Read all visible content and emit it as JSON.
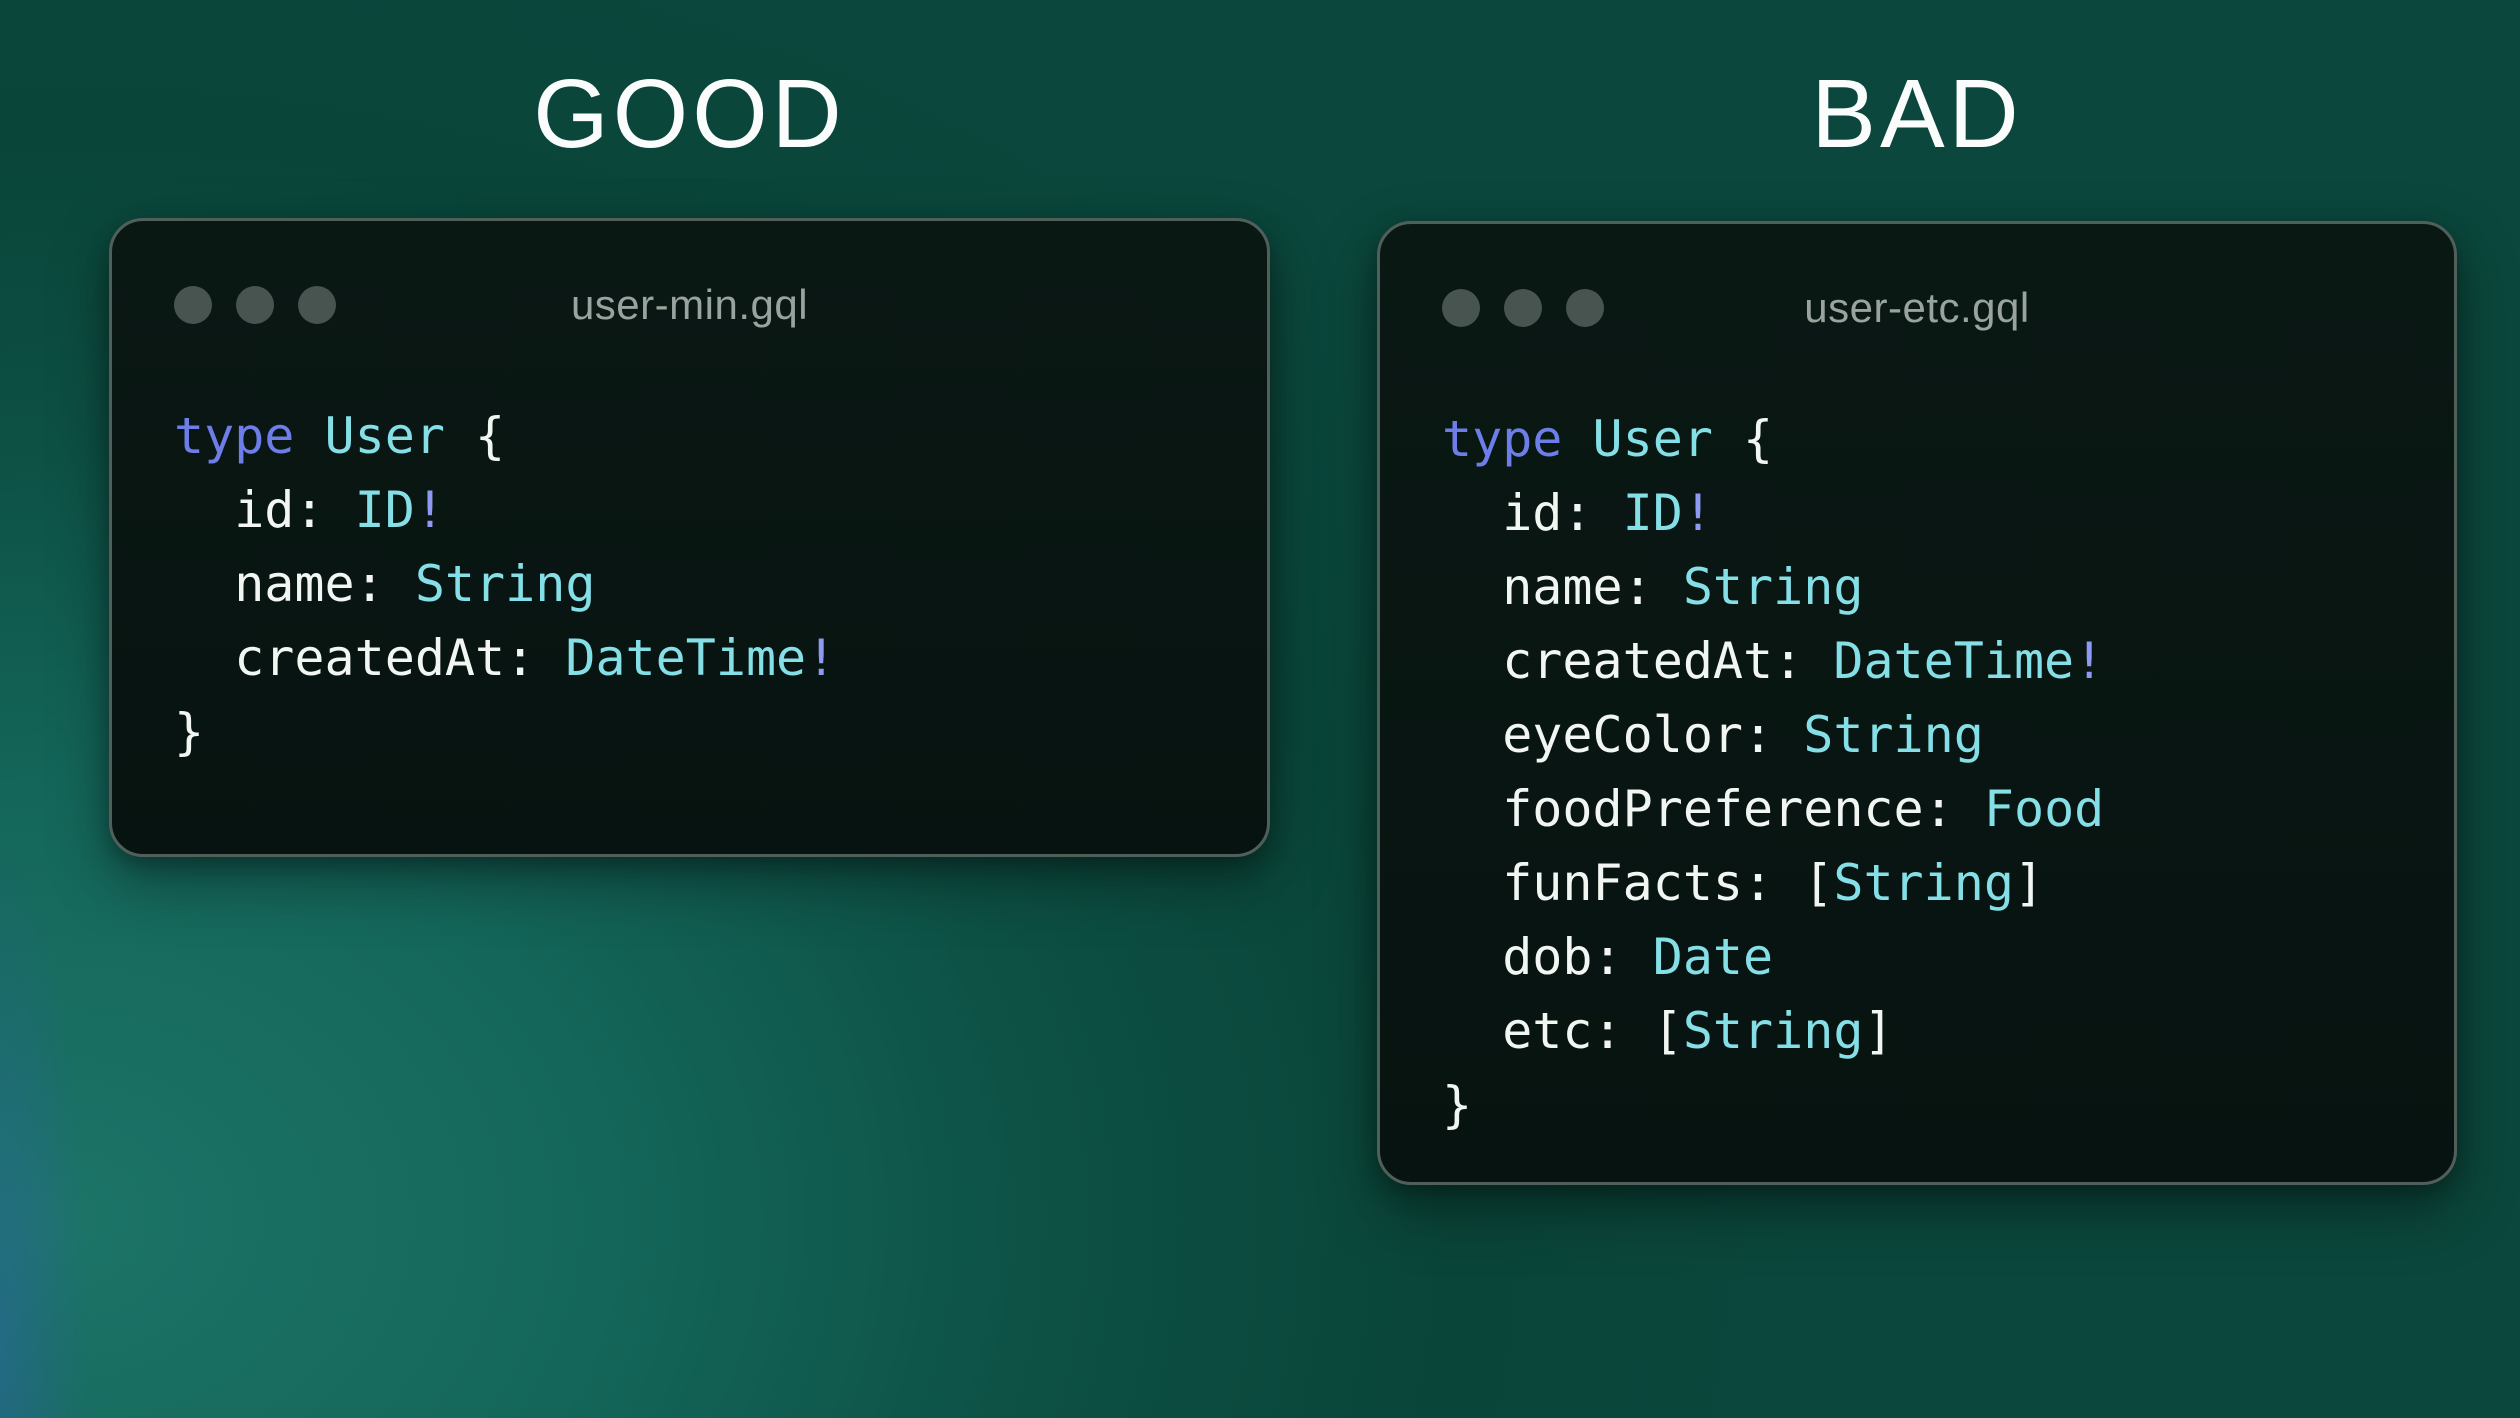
{
  "colors": {
    "keyword": "#6e7ee9",
    "type": "#85dfe7",
    "bang": "#8e9af2",
    "plain": "#f2f6f3",
    "window-bg-top": "#0a1814",
    "window-bg-bottom": "#071310",
    "window-border": "#515f5a",
    "window-title": "#9aa49f",
    "window-dot": "#47544f",
    "bg-light": "#1c7467",
    "bg-mid": "#14665a",
    "bg-base": "#0a4539",
    "heading": "#fbfdfc"
  },
  "headings": {
    "good": "GOOD",
    "bad": "BAD"
  },
  "windows": [
    {
      "title": "user-min.gql",
      "code": [
        [
          {
            "t": "type",
            "c": "kw"
          },
          {
            "t": " ",
            "c": "pl"
          },
          {
            "t": "User",
            "c": "ty"
          },
          {
            "t": " {",
            "c": "pl"
          }
        ],
        [
          {
            "t": "  id: ",
            "c": "pl"
          },
          {
            "t": "ID",
            "c": "ty"
          },
          {
            "t": "!",
            "c": "bang"
          }
        ],
        [
          {
            "t": "  name: ",
            "c": "pl"
          },
          {
            "t": "String",
            "c": "ty"
          }
        ],
        [
          {
            "t": "  createdAt: ",
            "c": "pl"
          },
          {
            "t": "DateTime",
            "c": "ty"
          },
          {
            "t": "!",
            "c": "bang"
          }
        ],
        [
          {
            "t": "}",
            "c": "pl"
          }
        ]
      ]
    },
    {
      "title": "user-etc.gql",
      "code": [
        [
          {
            "t": "type",
            "c": "kw"
          },
          {
            "t": " ",
            "c": "pl"
          },
          {
            "t": "User",
            "c": "ty"
          },
          {
            "t": " {",
            "c": "pl"
          }
        ],
        [
          {
            "t": "  id: ",
            "c": "pl"
          },
          {
            "t": "ID",
            "c": "ty"
          },
          {
            "t": "!",
            "c": "bang"
          }
        ],
        [
          {
            "t": "  name: ",
            "c": "pl"
          },
          {
            "t": "String",
            "c": "ty"
          }
        ],
        [
          {
            "t": "  createdAt: ",
            "c": "pl"
          },
          {
            "t": "DateTime",
            "c": "ty"
          },
          {
            "t": "!",
            "c": "bang"
          }
        ],
        [
          {
            "t": "  eyeColor: ",
            "c": "pl"
          },
          {
            "t": "String",
            "c": "ty"
          }
        ],
        [
          {
            "t": "  foodPreference: ",
            "c": "pl"
          },
          {
            "t": "Food",
            "c": "ty"
          }
        ],
        [
          {
            "t": "  funFacts: [",
            "c": "pl"
          },
          {
            "t": "String",
            "c": "ty"
          },
          {
            "t": "]",
            "c": "pl"
          }
        ],
        [
          {
            "t": "  dob: ",
            "c": "pl"
          },
          {
            "t": "Date",
            "c": "ty"
          }
        ],
        [
          {
            "t": "  etc: [",
            "c": "pl"
          },
          {
            "t": "String",
            "c": "ty"
          },
          {
            "t": "]",
            "c": "pl"
          }
        ],
        [
          {
            "t": "}",
            "c": "pl"
          }
        ]
      ]
    }
  ]
}
